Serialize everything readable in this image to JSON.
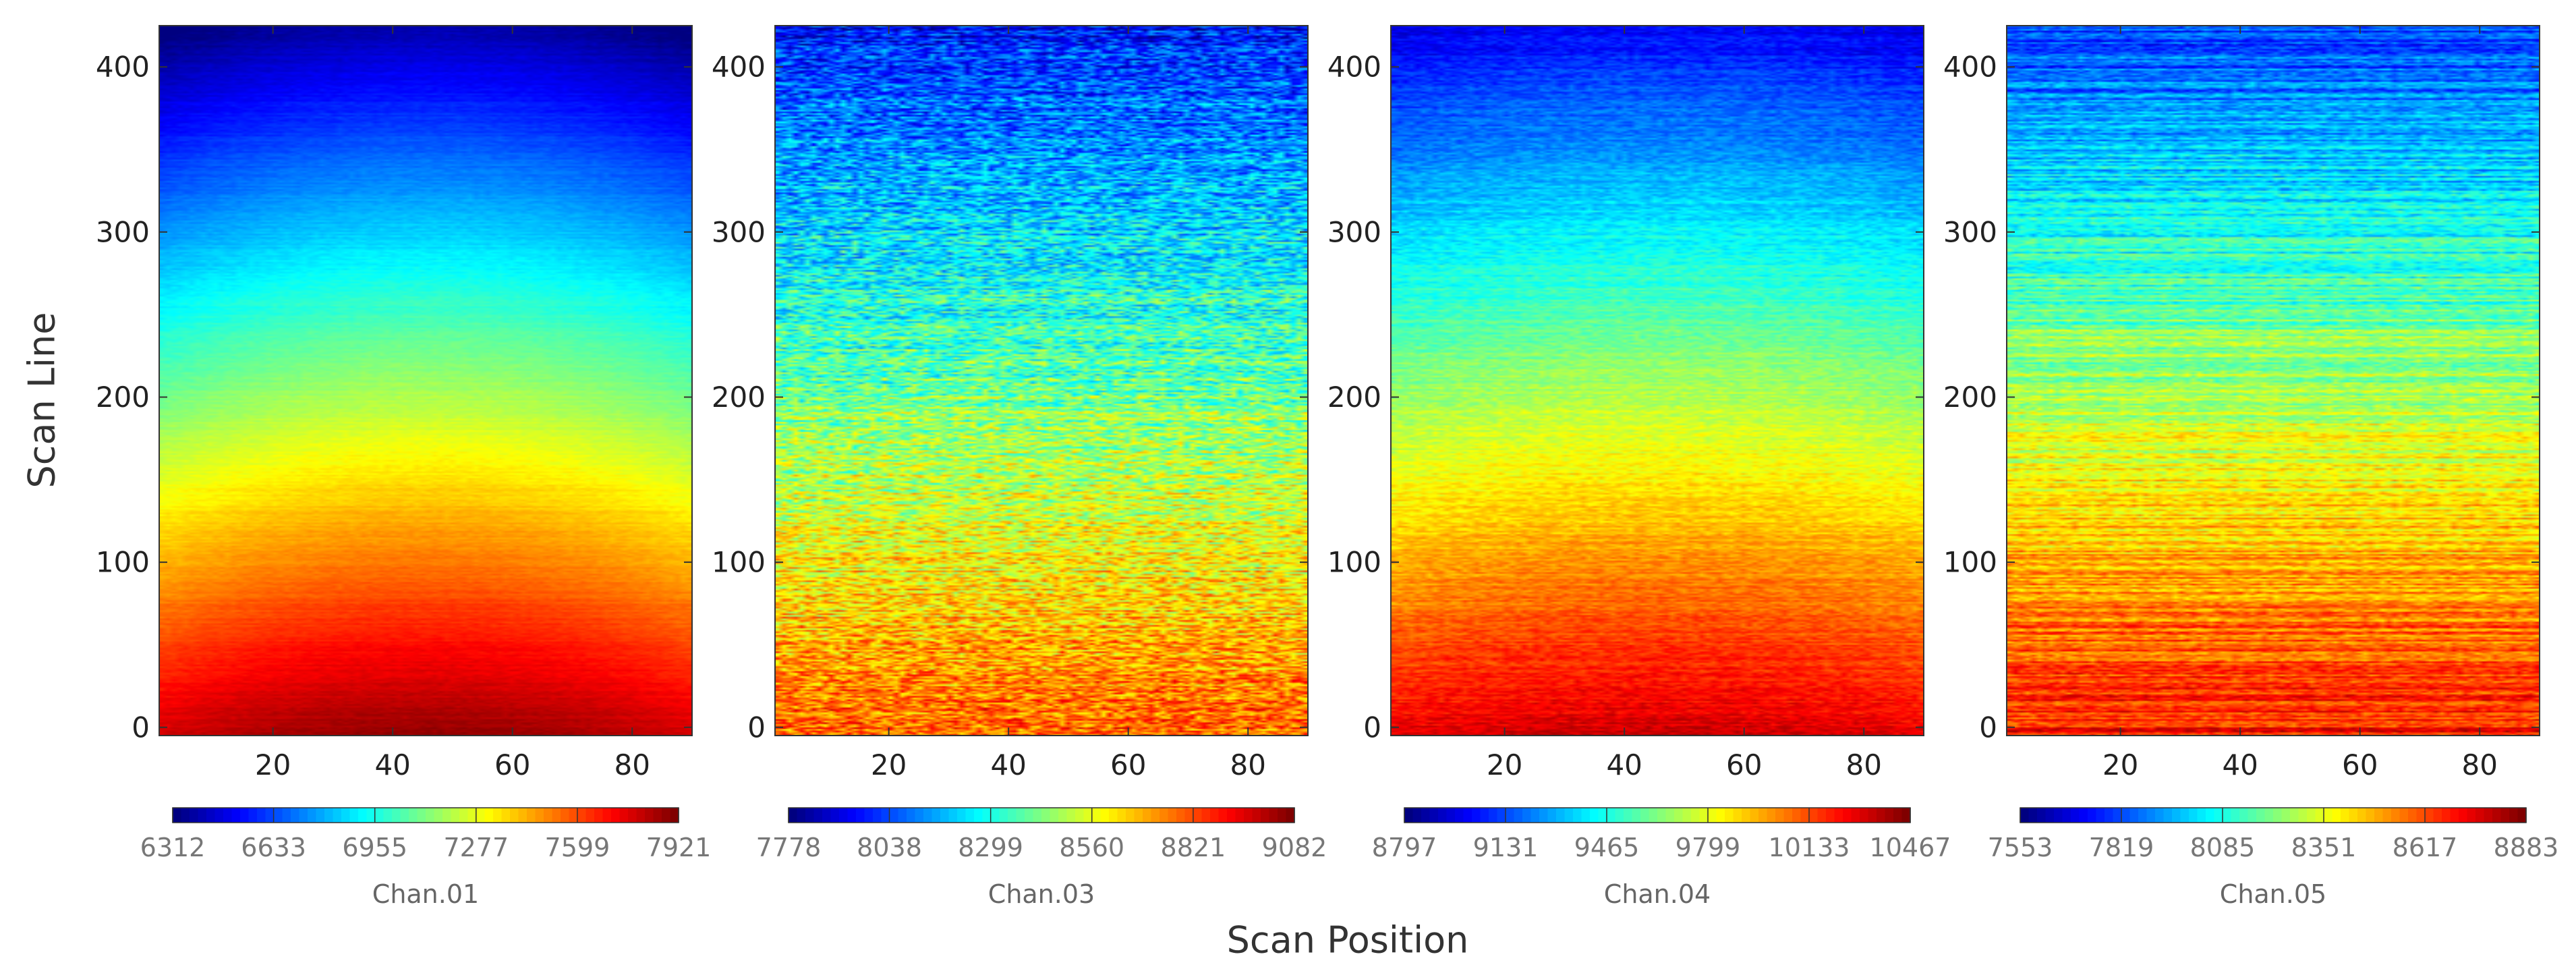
{
  "figure": {
    "ylabel": "Scan Line",
    "xlabel": "Scan Position"
  },
  "chart_data": [
    {
      "type": "heatmap",
      "title": "Chan.01",
      "xlabel": "Scan Position",
      "ylabel": "Scan Line",
      "xlim": [
        1,
        90
      ],
      "ylim": [
        -5,
        425
      ],
      "xticks": [
        20,
        40,
        60,
        80
      ],
      "yticks": [
        0,
        100,
        200,
        300,
        400
      ],
      "colorbar": {
        "min": 6312,
        "max": 7921,
        "ticks": [
          6312,
          6633,
          6955,
          7277,
          7599,
          7921
        ]
      },
      "pattern": {
        "top": 0.04,
        "bottom": 0.98,
        "edge_bright": 0.06,
        "noise": 0.015,
        "striping": 0.01
      }
    },
    {
      "type": "heatmap",
      "title": "Chan.03",
      "xlabel": "Scan Position",
      "ylabel": "Scan Line",
      "xlim": [
        1,
        90
      ],
      "ylim": [
        -5,
        425
      ],
      "xticks": [
        20,
        40,
        60,
        80
      ],
      "yticks": [
        0,
        100,
        200,
        300,
        400
      ],
      "colorbar": {
        "min": 7778,
        "max": 9082,
        "ticks": [
          7778,
          8038,
          8299,
          8560,
          8821,
          9082
        ]
      },
      "pattern": {
        "top": 0.14,
        "bottom": 0.78,
        "edge_bright": 0.0,
        "noise": 0.12,
        "striping": 0.05
      }
    },
    {
      "type": "heatmap",
      "title": "Chan.04",
      "xlabel": "Scan Position",
      "ylabel": "Scan Line",
      "xlim": [
        1,
        90
      ],
      "ylim": [
        -5,
        425
      ],
      "xticks": [
        20,
        40,
        60,
        80
      ],
      "yticks": [
        0,
        100,
        200,
        300,
        400
      ],
      "colorbar": {
        "min": 8797,
        "max": 10467,
        "ticks": [
          8797,
          9131,
          9465,
          9799,
          10133,
          10467
        ]
      },
      "pattern": {
        "top": 0.12,
        "bottom": 0.92,
        "edge_bright": 0.03,
        "noise": 0.04,
        "striping": 0.02
      }
    },
    {
      "type": "heatmap",
      "title": "Chan.05",
      "xlabel": "Scan Position",
      "ylabel": "Scan Line",
      "xlim": [
        1,
        90
      ],
      "ylim": [
        -5,
        425
      ],
      "xticks": [
        20,
        40,
        60,
        80
      ],
      "yticks": [
        0,
        100,
        200,
        300,
        400
      ],
      "colorbar": {
        "min": 7553,
        "max": 8883,
        "ticks": [
          7553,
          7819,
          8085,
          8351,
          8617,
          8883
        ]
      },
      "pattern": {
        "top": 0.18,
        "bottom": 0.86,
        "edge_bright": 0.0,
        "noise": 0.06,
        "striping": 0.07
      }
    }
  ]
}
